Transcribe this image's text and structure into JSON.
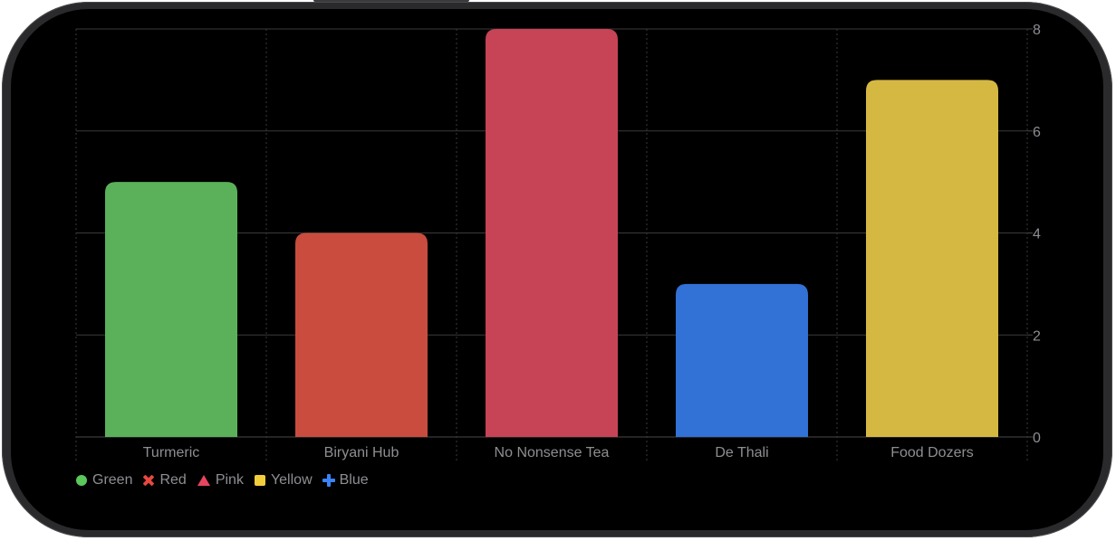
{
  "chart_data": {
    "type": "bar",
    "categories": [
      "Turmeric",
      "Biryani Hub",
      "No Nonsense Tea",
      "De Thali",
      "Food Dozers"
    ],
    "values": [
      5,
      4,
      8,
      3,
      7
    ],
    "bar_colors": [
      "#5ab15a",
      "#c94c3e",
      "#c74356",
      "#3271d6",
      "#d5b842"
    ],
    "ylim": [
      0,
      8
    ],
    "y_ticks": [
      "0",
      "2",
      "4",
      "6",
      "8"
    ],
    "y_axis_position": "right",
    "grid": true,
    "legend": {
      "placement": "bottom-left",
      "entries": [
        {
          "label": "Green",
          "symbol": "circle",
          "color": "#5ac85a"
        },
        {
          "label": "Red",
          "symbol": "cross",
          "color": "#e8483f"
        },
        {
          "label": "Pink",
          "symbol": "triangle",
          "color": "#e84560"
        },
        {
          "label": "Yellow",
          "symbol": "square",
          "color": "#f2cd3c"
        },
        {
          "label": "Blue",
          "symbol": "plus",
          "color": "#3b82f6"
        }
      ]
    }
  },
  "colors": {
    "background": "#000000",
    "gridline": "#3a3a3c",
    "label_text": "#8e8e93"
  }
}
